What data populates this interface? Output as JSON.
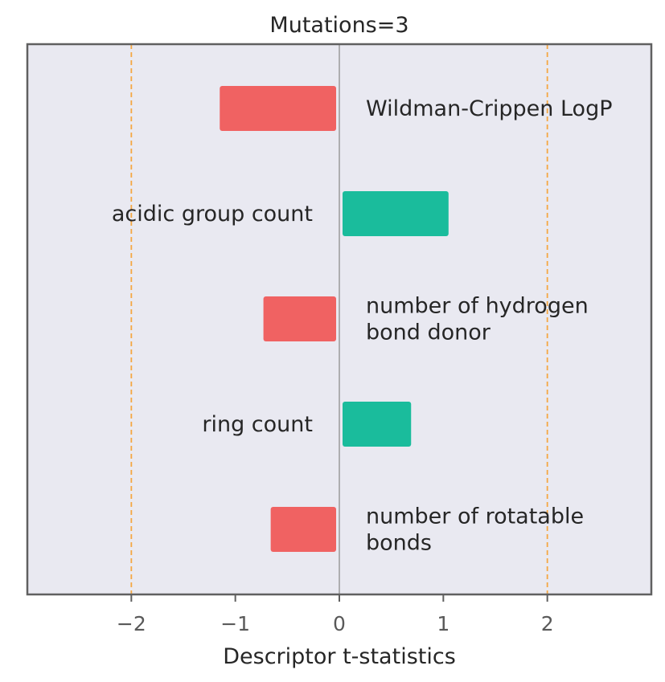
{
  "chart_data": {
    "type": "bar",
    "orientation": "horizontal",
    "title": "Mutations=3",
    "xlabel": "Descriptor t-statistics",
    "ylabel": "",
    "xlim": [
      -3,
      3
    ],
    "xticks": [
      -2,
      -1,
      0,
      1,
      2
    ],
    "xtick_labels": [
      "−2",
      "−1",
      "0",
      "1",
      "2"
    ],
    "reference_lines": [
      -2,
      2
    ],
    "zero_line": 0,
    "grid": false,
    "background": "#e9e9f1",
    "categories": [
      [
        "Wildman-Crippen LogP"
      ],
      [
        "acidic group count"
      ],
      [
        "number of hydrogen",
        "bond donor"
      ],
      [
        "ring count"
      ],
      [
        "number of rotatable",
        "bonds"
      ]
    ],
    "values": [
      -1.15,
      1.05,
      -0.73,
      0.69,
      -0.66
    ],
    "colors": {
      "negative": "#f06262",
      "positive": "#1abc9c",
      "reference_line": "#f5a742",
      "zero_line": "#9a9a9a",
      "frame": "#606060"
    }
  }
}
